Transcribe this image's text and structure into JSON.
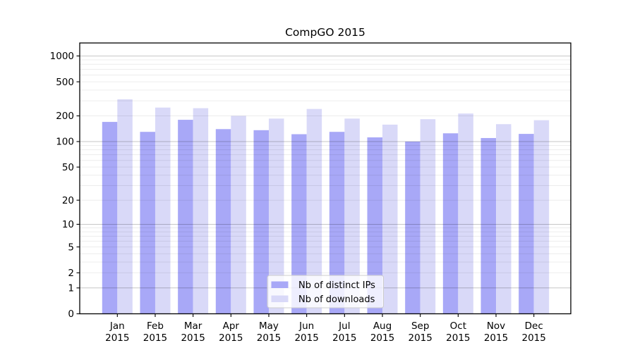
{
  "chart_data": {
    "type": "bar",
    "title": "CompGO 2015",
    "categories": [
      "Jan",
      "Feb",
      "Mar",
      "Apr",
      "May",
      "Jun",
      "Jul",
      "Aug",
      "Sep",
      "Oct",
      "Nov",
      "Dec"
    ],
    "year_label": "2015",
    "series": [
      {
        "name": "Nb of distinct IPs",
        "color": "#a8a8f7",
        "values": [
          170,
          130,
          180,
          140,
          136,
          122,
          130,
          112,
          100,
          125,
          110,
          123
        ]
      },
      {
        "name": "Nb of downloads",
        "color": "#d9d9f8",
        "values": [
          312,
          250,
          246,
          200,
          186,
          241,
          186,
          158,
          183,
          213,
          160,
          178
        ]
      }
    ],
    "yticks": [
      0,
      1,
      2,
      5,
      10,
      20,
      50,
      100,
      200,
      500,
      1000
    ],
    "ytick_labels": [
      "0",
      "1",
      "2",
      "5",
      "10",
      "20",
      "50",
      "100",
      "200",
      "500",
      "1000"
    ],
    "yscale": "log1p (log10 of 1+value, 0 at baseline)",
    "ylim": [
      0,
      1400
    ],
    "grid": "horizontal major lines at decades, faint minor log lines",
    "legend_position": "inside plot, lower center",
    "legend": {
      "items": [
        {
          "label": "Nb of distinct IPs",
          "color": "#a8a8f7"
        },
        {
          "label": "Nb of downloads",
          "color": "#d9d9f8"
        }
      ]
    }
  },
  "colors": {
    "background": "#ffffff",
    "bar_distinct_ips": "#a8a8f7",
    "bar_downloads": "#d9d9f8",
    "grid_major": "rgba(0,0,0,0.22)",
    "grid_minor": "rgba(0,0,0,0.075)",
    "spine": "#000000",
    "legend_background": "rgba(255,255,255,0.8)",
    "legend_border": "#cccccc"
  }
}
